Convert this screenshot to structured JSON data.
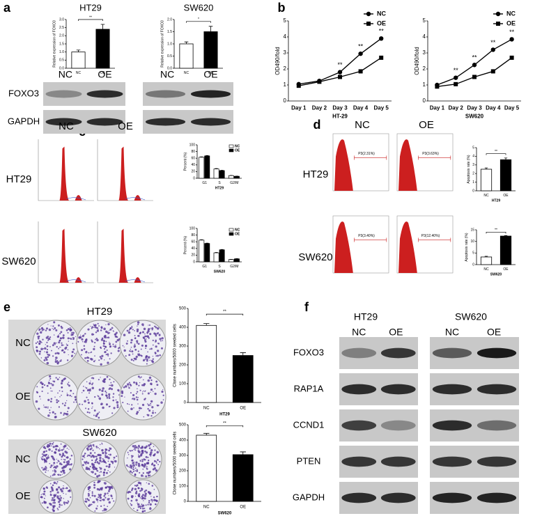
{
  "panel_labels": [
    "a",
    "b",
    "c",
    "d",
    "e",
    "f"
  ],
  "blot_a": {
    "lanes": [
      "NC",
      "OE"
    ],
    "proteins": [
      "FOXO3",
      "GAPDH"
    ]
  },
  "flow_c": {
    "columns": [
      "NC",
      "OE"
    ],
    "rows": [
      "HT29",
      "SW620"
    ]
  },
  "flow_d": {
    "columns": [
      "NC",
      "OE"
    ],
    "rows": [
      "HT29",
      "SW620"
    ],
    "gates": [
      "P3(2.31%)",
      "P3(3.63%)",
      "P3(3.40%)",
      "P3(12.40%)"
    ]
  },
  "colony_e": {
    "headings": [
      "HT29",
      "SW620"
    ],
    "rows": [
      "NC",
      "OE"
    ]
  },
  "blot_f": {
    "cells": [
      "HT29",
      "SW620"
    ],
    "lanes": [
      "NC",
      "OE"
    ],
    "proteins": [
      "FOXO3",
      "RAP1A",
      "CCND1",
      "PTEN",
      "GAPDH"
    ]
  },
  "chart_data": [
    {
      "type": "bar",
      "title": "HT29",
      "ylabel": "Relative expression of FOXO3",
      "categories": [
        "NC",
        "OE"
      ],
      "values": [
        1.0,
        2.4
      ],
      "errors": [
        0.12,
        0.3
      ],
      "colors": [
        "#ffffff",
        "#000000"
      ],
      "ylim": [
        0,
        3
      ],
      "yticks": [
        {
          "value": 0,
          "label": "0.0"
        },
        0.5,
        {
          "value": 1,
          "label": "1.0"
        },
        1.5,
        {
          "value": 2,
          "label": "2.0"
        },
        2.5,
        {
          "value": 3,
          "label": "3.0"
        }
      ],
      "significance": "**"
    },
    {
      "type": "bar",
      "title": "SW620",
      "ylabel": "Relative expression of FOXO3",
      "categories": [
        "NC",
        "OE"
      ],
      "values": [
        1.0,
        1.5
      ],
      "errors": [
        0.08,
        0.22
      ],
      "colors": [
        "#ffffff",
        "#000000"
      ],
      "ylim": [
        0,
        2
      ],
      "yticks": [
        {
          "value": 0,
          "label": "0.0"
        },
        0.5,
        {
          "value": 1,
          "label": "1.0"
        },
        1.5,
        {
          "value": 2,
          "label": "2.0"
        }
      ],
      "significance": "*"
    },
    {
      "type": "line",
      "xlabel": "HT-29",
      "ylabel": "OD490/fold",
      "categories": [
        "Day 1",
        "Day 2",
        "Day 3",
        "Day 4",
        "Day 5"
      ],
      "series": [
        {
          "name": "NC",
          "color": "#000000",
          "marker": "circle",
          "values": [
            1.05,
            1.25,
            1.8,
            2.95,
            3.9
          ]
        },
        {
          "name": "OE",
          "color": "#000000",
          "marker": "square",
          "values": [
            0.95,
            1.2,
            1.5,
            1.85,
            2.7
          ]
        }
      ],
      "ylim": [
        0,
        5
      ],
      "yticks": [
        0,
        1,
        2,
        3,
        4,
        5
      ],
      "legend": "upper right",
      "annotations": [
        {
          "text": "**",
          "category": "Day 3"
        },
        {
          "text": "**",
          "category": "Day 4"
        },
        {
          "text": "**",
          "category": "Day 5"
        }
      ]
    },
    {
      "type": "line",
      "xlabel": "SW620",
      "ylabel": "OD490/fold",
      "categories": [
        "Day 1",
        "Day 2",
        "Day 3",
        "Day 4",
        "Day 5"
      ],
      "series": [
        {
          "name": "NC",
          "color": "#000000",
          "marker": "circle",
          "values": [
            1.0,
            1.45,
            2.25,
            3.2,
            3.85
          ]
        },
        {
          "name": "OE",
          "color": "#000000",
          "marker": "square",
          "values": [
            0.9,
            1.05,
            1.5,
            1.85,
            2.7
          ]
        }
      ],
      "ylim": [
        0,
        5
      ],
      "yticks": [
        0,
        1,
        2,
        3,
        4,
        5
      ],
      "legend": "upper right",
      "annotations": [
        {
          "text": "**",
          "category": "Day 2"
        },
        {
          "text": "**",
          "category": "Day 3"
        },
        {
          "text": "**",
          "category": "Day 4"
        },
        {
          "text": "**",
          "category": "Day 5"
        }
      ]
    },
    {
      "type": "bar",
      "xlabel": "HT29",
      "ylabel": "Percent (%)",
      "categories": [
        "G1",
        "S",
        "G2/M"
      ],
      "series": [
        {
          "name": "NC",
          "color": "#ffffff",
          "values": [
            63,
            28,
            8
          ],
          "errors": [
            1,
            1,
            0.5
          ]
        },
        {
          "name": "OE",
          "color": "#000000",
          "values": [
            67,
            23,
            6
          ],
          "errors": [
            1,
            1,
            0.5
          ]
        }
      ],
      "ylim": [
        0,
        100
      ],
      "yticks": [
        0,
        20,
        40,
        60,
        80,
        100
      ],
      "legend": "upper right"
    },
    {
      "type": "bar",
      "xlabel": "SW620",
      "ylabel": "Percent (%)",
      "categories": [
        "G1",
        "S",
        "G2/M"
      ],
      "series": [
        {
          "name": "NC",
          "color": "#ffffff",
          "values": [
            65,
            27,
            7
          ],
          "errors": [
            1,
            1,
            0.5
          ]
        },
        {
          "name": "OE",
          "color": "#000000",
          "values": [
            55,
            36,
            9
          ],
          "errors": [
            1,
            1,
            0.5
          ]
        }
      ],
      "ylim": [
        0,
        100
      ],
      "yticks": [
        0,
        20,
        40,
        60,
        80,
        100
      ],
      "legend": "upper right"
    },
    {
      "type": "bar",
      "xlabel": "HT29",
      "ylabel": "Apoptosis rate (%)",
      "categories": [
        "NC",
        "OE"
      ],
      "values": [
        2.5,
        3.6
      ],
      "errors": [
        0.15,
        0.2
      ],
      "colors": [
        "#ffffff",
        "#000000"
      ],
      "ylim": [
        0,
        5
      ],
      "yticks": [
        0,
        1,
        2,
        3,
        4,
        5
      ],
      "significance": "**"
    },
    {
      "type": "bar",
      "xlabel": "SW620",
      "ylabel": "Apoptosis rate (%)",
      "categories": [
        "NC",
        "OE"
      ],
      "values": [
        3.3,
        12.3
      ],
      "errors": [
        0.3,
        0.2
      ],
      "colors": [
        "#ffffff",
        "#000000"
      ],
      "ylim": [
        0,
        15
      ],
      "yticks": [
        0,
        5,
        10,
        15
      ],
      "significance": "**"
    },
    {
      "type": "bar",
      "xlabel": "HT29",
      "ylabel": "Clone numbers/5000 seeded cells",
      "categories": [
        "NC",
        "OE"
      ],
      "values": [
        410,
        250
      ],
      "errors": [
        10,
        15
      ],
      "colors": [
        "#ffffff",
        "#000000"
      ],
      "ylim": [
        0,
        500
      ],
      "yticks": [
        0,
        100,
        200,
        300,
        400,
        500
      ],
      "significance": "**"
    },
    {
      "type": "bar",
      "xlabel": "SW620",
      "ylabel": "Clone numbers/5000 seeded cells",
      "categories": [
        "NC",
        "OE"
      ],
      "values": [
        432,
        305
      ],
      "errors": [
        12,
        18
      ],
      "colors": [
        "#ffffff",
        "#000000"
      ],
      "ylim": [
        0,
        500
      ],
      "yticks": [
        0,
        100,
        200,
        300,
        400,
        500
      ],
      "significance": "**"
    }
  ]
}
